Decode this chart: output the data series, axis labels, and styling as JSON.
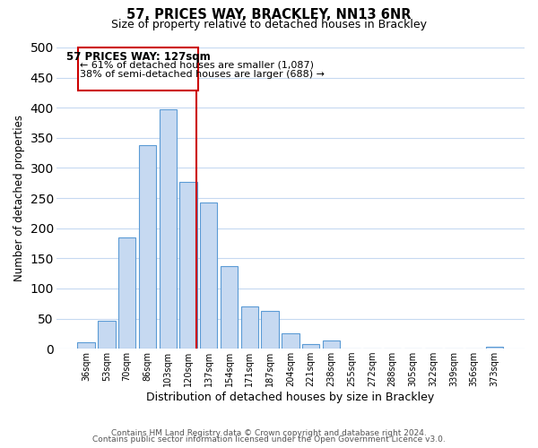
{
  "title": "57, PRICES WAY, BRACKLEY, NN13 6NR",
  "subtitle": "Size of property relative to detached houses in Brackley",
  "xlabel": "Distribution of detached houses by size in Brackley",
  "ylabel": "Number of detached properties",
  "bar_labels": [
    "36sqm",
    "53sqm",
    "70sqm",
    "86sqm",
    "103sqm",
    "120sqm",
    "137sqm",
    "154sqm",
    "171sqm",
    "187sqm",
    "204sqm",
    "221sqm",
    "238sqm",
    "255sqm",
    "272sqm",
    "288sqm",
    "305sqm",
    "322sqm",
    "339sqm",
    "356sqm",
    "373sqm"
  ],
  "bar_values": [
    10,
    47,
    185,
    338,
    398,
    277,
    242,
    137,
    70,
    63,
    25,
    8,
    13,
    0,
    0,
    0,
    0,
    0,
    0,
    0,
    3
  ],
  "bar_color": "#c6d9f1",
  "bar_edge_color": "#5b9bd5",
  "grid_color": "#c6d9f1",
  "annotation_line1": "57 PRICES WAY: 127sqm",
  "annotation_line2": "← 61% of detached houses are smaller (1,087)",
  "annotation_line3": "38% of semi-detached houses are larger (688) →",
  "annotation_box_color": "#ffffff",
  "annotation_box_edge": "#cc0000",
  "property_line_color": "#cc0000",
  "ylim": [
    0,
    500
  ],
  "footer1": "Contains HM Land Registry data © Crown copyright and database right 2024.",
  "footer2": "Contains public sector information licensed under the Open Government Licence v3.0."
}
